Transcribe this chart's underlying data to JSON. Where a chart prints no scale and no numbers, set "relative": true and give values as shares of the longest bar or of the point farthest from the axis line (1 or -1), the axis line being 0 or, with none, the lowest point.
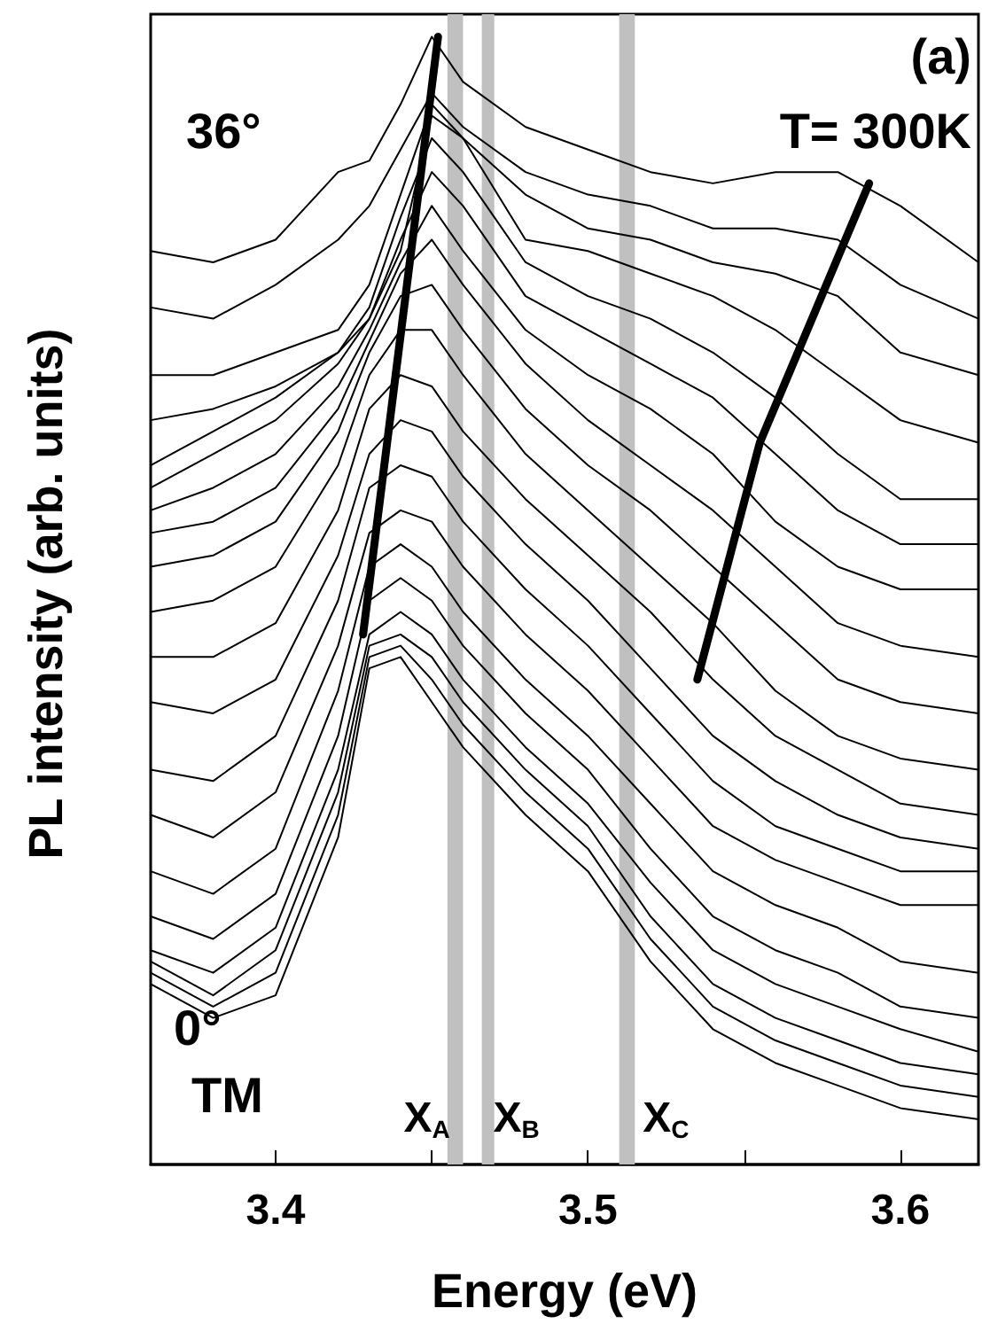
{
  "chart_data": {
    "type": "line",
    "relative": true,
    "xlabel": "Energy (eV)",
    "ylabel": "PL intensity (arb. units)",
    "xlim": [
      3.36,
      3.625
    ],
    "xticks": [
      3.4,
      {
        "value": 3.45,
        "label": null
      },
      3.5,
      {
        "value": 3.55,
        "label": null
      },
      3.6
    ],
    "x": [
      3.36,
      3.38,
      3.4,
      3.42,
      3.43,
      3.44,
      3.45,
      3.46,
      3.48,
      3.5,
      3.52,
      3.54,
      3.56,
      3.58,
      3.6,
      3.625
    ],
    "grid": false,
    "marker": "none",
    "series": [
      {
        "color": "#000000",
        "values": [
          0.81,
          0.8,
          0.82,
          0.88,
          0.89,
          0.94,
          1.0,
          0.96,
          0.92,
          0.9,
          0.88,
          0.87,
          0.88,
          0.88,
          0.85,
          0.8
        ]
      },
      {
        "color": "#000000",
        "values": [
          0.76,
          0.75,
          0.78,
          0.82,
          0.85,
          0.9,
          0.95,
          0.92,
          0.88,
          0.86,
          0.85,
          0.83,
          0.83,
          0.82,
          0.78,
          0.75
        ]
      },
      {
        "color": "#000000",
        "values": [
          0.7,
          0.7,
          0.72,
          0.74,
          0.78,
          0.86,
          0.94,
          0.91,
          0.86,
          0.83,
          0.82,
          0.8,
          0.79,
          0.77,
          0.72,
          0.7
        ]
      },
      {
        "color": "#000000",
        "values": [
          0.66,
          0.67,
          0.69,
          0.72,
          0.75,
          0.81,
          0.93,
          0.91,
          0.82,
          0.81,
          0.79,
          0.77,
          0.74,
          0.7,
          0.66,
          0.64
        ]
      },
      {
        "color": "#000000",
        "values": [
          0.62,
          0.65,
          0.68,
          0.72,
          0.76,
          0.84,
          0.91,
          0.88,
          0.8,
          0.77,
          0.75,
          0.72,
          0.68,
          0.63,
          0.59,
          0.59
        ]
      },
      {
        "color": "#000000",
        "values": [
          0.6,
          0.63,
          0.66,
          0.71,
          0.75,
          0.82,
          0.88,
          0.85,
          0.77,
          0.74,
          0.71,
          0.68,
          0.63,
          0.58,
          0.55,
          0.55
        ]
      },
      {
        "color": "#000000",
        "values": [
          0.58,
          0.6,
          0.63,
          0.69,
          0.74,
          0.8,
          0.85,
          0.81,
          0.74,
          0.7,
          0.67,
          0.63,
          0.57,
          0.53,
          0.51,
          0.51
        ]
      },
      {
        "color": "#000000",
        "values": [
          0.56,
          0.57,
          0.6,
          0.67,
          0.73,
          0.79,
          0.82,
          0.78,
          0.71,
          0.66,
          0.62,
          0.58,
          0.53,
          0.48,
          0.46,
          0.45
        ]
      },
      {
        "color": "#000000",
        "values": [
          0.53,
          0.54,
          0.57,
          0.65,
          0.72,
          0.77,
          0.78,
          0.74,
          0.67,
          0.62,
          0.58,
          0.53,
          0.48,
          0.43,
          0.41,
          0.4
        ]
      },
      {
        "color": "#000000",
        "values": [
          0.49,
          0.5,
          0.53,
          0.62,
          0.7,
          0.74,
          0.74,
          0.7,
          0.63,
          0.58,
          0.53,
          0.48,
          0.42,
          0.38,
          0.36,
          0.35
        ]
      },
      {
        "color": "#000000",
        "values": [
          0.45,
          0.45,
          0.48,
          0.58,
          0.67,
          0.7,
          0.69,
          0.65,
          0.59,
          0.54,
          0.49,
          0.43,
          0.38,
          0.35,
          0.32,
          0.31
        ]
      },
      {
        "color": "#000000",
        "values": [
          0.41,
          0.4,
          0.43,
          0.54,
          0.63,
          0.66,
          0.65,
          0.61,
          0.55,
          0.5,
          0.44,
          0.38,
          0.34,
          0.31,
          0.29,
          0.28
        ]
      },
      {
        "color": "#000000",
        "values": [
          0.35,
          0.34,
          0.38,
          0.5,
          0.6,
          0.62,
          0.61,
          0.57,
          0.51,
          0.46,
          0.4,
          0.34,
          0.3,
          0.28,
          0.26,
          0.26
        ]
      },
      {
        "color": "#000000",
        "values": [
          0.31,
          0.29,
          0.33,
          0.46,
          0.56,
          0.58,
          0.57,
          0.53,
          0.47,
          0.42,
          0.36,
          0.3,
          0.27,
          0.25,
          0.23,
          0.23
        ]
      },
      {
        "color": "#000000",
        "values": [
          0.26,
          0.24,
          0.28,
          0.42,
          0.53,
          0.55,
          0.53,
          0.49,
          0.43,
          0.38,
          0.32,
          0.26,
          0.23,
          0.21,
          0.18,
          0.17
        ]
      },
      {
        "color": "#000000",
        "values": [
          0.22,
          0.2,
          0.24,
          0.38,
          0.5,
          0.52,
          0.5,
          0.46,
          0.4,
          0.35,
          0.28,
          0.22,
          0.19,
          0.17,
          0.14,
          0.13
        ]
      },
      {
        "color": "#000000",
        "values": [
          0.19,
          0.17,
          0.21,
          0.35,
          0.47,
          0.49,
          0.47,
          0.43,
          0.37,
          0.32,
          0.25,
          0.19,
          0.16,
          0.14,
          0.12,
          0.1
        ]
      },
      {
        "color": "#000000",
        "values": [
          0.18,
          0.15,
          0.19,
          0.33,
          0.46,
          0.47,
          0.45,
          0.41,
          0.35,
          0.3,
          0.22,
          0.16,
          0.13,
          0.11,
          0.09,
          0.08
        ]
      },
      {
        "color": "#000000",
        "values": [
          0.17,
          0.14,
          0.17,
          0.31,
          0.45,
          0.46,
          0.43,
          0.39,
          0.33,
          0.28,
          0.2,
          0.14,
          0.11,
          0.09,
          0.07,
          0.06
        ]
      },
      {
        "color": "#000000",
        "values": [
          0.16,
          0.13,
          0.15,
          0.29,
          0.44,
          0.45,
          0.41,
          0.37,
          0.31,
          0.26,
          0.18,
          0.12,
          0.09,
          0.07,
          0.05,
          0.04
        ]
      },
      {
        "type": "line",
        "color": "#000000",
        "x": [
          3.428,
          3.452
        ],
        "values": [
          0.47,
          1.0
        ]
      },
      {
        "type": "line",
        "color": "#000000",
        "x": [
          3.535,
          3.555,
          3.59
        ],
        "values": [
          0.43,
          0.64,
          0.87
        ]
      }
    ],
    "bands": [
      {
        "axis": "x",
        "from": 3.455,
        "to": 3.46,
        "label": "X$_{A}$",
        "color": "#c0c0c0"
      },
      {
        "axis": "x",
        "from": 3.466,
        "to": 3.47,
        "label": "X$_{B}$",
        "color": "#c0c0c0"
      },
      {
        "axis": "x",
        "from": 3.51,
        "to": 3.515,
        "label": "X$_{C}$",
        "color": "#c0c0c0"
      }
    ],
    "annotations": [
      "(a)",
      "T= 300K",
      "36°",
      "0°",
      "TM"
    ]
  }
}
